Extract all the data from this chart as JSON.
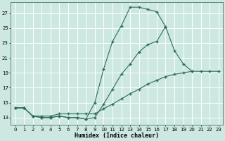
{
  "xlabel": "Humidex (Indice chaleur)",
  "bg_color": "#cce8e0",
  "grid_color": "#b0d8d0",
  "line_color": "#2e6b5e",
  "xlim": [
    -0.5,
    23.5
  ],
  "ylim": [
    12.0,
    28.5
  ],
  "yticks": [
    13,
    15,
    17,
    19,
    21,
    23,
    25,
    27
  ],
  "xticks": [
    0,
    1,
    2,
    3,
    4,
    5,
    6,
    7,
    8,
    9,
    10,
    11,
    12,
    13,
    14,
    15,
    16,
    17,
    18,
    19,
    20,
    21,
    22,
    23
  ],
  "line1_x": [
    0,
    1,
    2,
    3,
    4,
    5,
    6,
    7,
    8,
    9,
    10,
    11,
    12,
    13,
    14,
    15,
    16,
    17,
    18,
    19,
    20
  ],
  "line1_y": [
    14.3,
    14.3,
    13.2,
    13.0,
    13.0,
    13.2,
    13.0,
    13.0,
    12.8,
    15.0,
    19.5,
    23.2,
    25.3,
    27.8,
    27.8,
    27.5,
    27.2,
    25.2,
    null,
    null,
    null
  ],
  "line2_x": [
    0,
    1,
    2,
    3,
    4,
    5,
    6,
    7,
    8,
    9,
    10,
    11,
    12,
    13,
    14,
    15,
    16,
    17,
    18,
    19,
    20
  ],
  "line2_y": [
    14.3,
    14.3,
    13.2,
    13.0,
    13.0,
    13.2,
    13.0,
    13.0,
    12.8,
    13.0,
    14.8,
    16.8,
    18.8,
    20.2,
    21.8,
    22.8,
    23.2,
    25.2,
    22.0,
    20.2,
    19.2
  ],
  "line3_x": [
    0,
    1,
    2,
    3,
    4,
    5,
    6,
    7,
    8,
    9,
    10,
    11,
    12,
    13,
    14,
    15,
    16,
    17,
    18,
    19,
    20,
    21,
    22,
    23
  ],
  "line3_y": [
    14.3,
    14.3,
    13.2,
    13.2,
    13.2,
    13.5,
    13.5,
    13.5,
    13.5,
    13.5,
    14.2,
    14.8,
    15.5,
    16.2,
    16.8,
    17.5,
    18.0,
    18.5,
    18.8,
    19.0,
    19.2,
    19.2,
    19.2,
    19.2
  ]
}
